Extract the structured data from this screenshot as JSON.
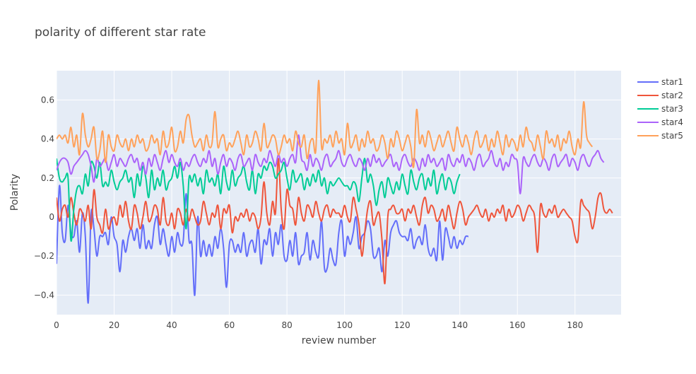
{
  "chart_data": {
    "type": "line",
    "title": "polarity of different star rate",
    "xlabel": "review number",
    "ylabel": "Polarity",
    "xlim": [
      0,
      196
    ],
    "ylim": [
      -0.5,
      0.75
    ],
    "xticks": [
      0,
      20,
      40,
      60,
      80,
      100,
      120,
      140,
      160,
      180
    ],
    "yticks": [
      -0.4,
      -0.2,
      0,
      0.2,
      0.4,
      0.6
    ],
    "ytick_labels": [
      "−0.4",
      "−0.2",
      "0",
      "0.2",
      "0.4",
      "0.6"
    ],
    "grid": true,
    "legend_position": "top-right",
    "series": [
      {
        "name": "star1",
        "color": "#636efa",
        "values": [
          -0.24,
          0.16,
          -0.08,
          -0.12,
          0.06,
          -0.08,
          -0.1,
          -0.02,
          -0.18,
          0.02,
          -0.1,
          -0.44,
          0.02,
          -0.06,
          -0.2,
          -0.1,
          -0.1,
          -0.08,
          -0.14,
          0.0,
          -0.1,
          -0.14,
          -0.28,
          -0.12,
          -0.18,
          -0.1,
          -0.06,
          -0.12,
          -0.06,
          -0.16,
          -0.04,
          -0.16,
          -0.12,
          -0.16,
          -0.04,
          0.0,
          -0.14,
          -0.06,
          -0.14,
          -0.2,
          -0.1,
          -0.18,
          -0.08,
          -0.14,
          -0.12,
          0.12,
          -0.12,
          -0.14,
          -0.4,
          0.0,
          -0.2,
          -0.12,
          -0.2,
          -0.14,
          -0.2,
          -0.1,
          -0.16,
          -0.06,
          -0.16,
          -0.36,
          -0.14,
          -0.12,
          -0.18,
          -0.14,
          -0.18,
          -0.08,
          -0.2,
          -0.14,
          -0.12,
          -0.18,
          -0.06,
          -0.24,
          -0.12,
          -0.14,
          -0.06,
          -0.2,
          -0.08,
          -0.14,
          -0.04,
          -0.2,
          -0.22,
          -0.12,
          -0.2,
          -0.08,
          -0.24,
          -0.2,
          -0.18,
          -0.08,
          -0.22,
          -0.12,
          -0.18,
          -0.2,
          -0.02,
          -0.26,
          -0.26,
          -0.16,
          -0.22,
          -0.24,
          -0.08,
          -0.02,
          -0.2,
          -0.1,
          -0.14,
          -0.08,
          0.0,
          -0.16,
          -0.1,
          -0.08,
          -0.02,
          -0.06,
          -0.2,
          -0.2,
          -0.16,
          -0.28,
          -0.12,
          -0.2,
          -0.08,
          -0.04,
          -0.02,
          -0.08,
          -0.1,
          -0.1,
          -0.12,
          -0.06,
          -0.16,
          -0.12,
          -0.1,
          -0.14,
          -0.04,
          -0.16,
          -0.2,
          -0.16,
          -0.22,
          -0.02,
          -0.22,
          -0.06,
          -0.1,
          -0.16,
          -0.1,
          -0.16,
          -0.12,
          -0.14,
          -0.1,
          -0.1
        ]
      },
      {
        "name": "star2",
        "color": "#ef553b",
        "values": [
          0.1,
          -0.02,
          0.04,
          0.06,
          0.0,
          0.1,
          0.02,
          -0.04,
          0.04,
          0.02,
          -0.02,
          0.06,
          -0.06,
          0.14,
          0.0,
          -0.04,
          -0.08,
          0.04,
          -0.06,
          -0.02,
          0.0,
          -0.04,
          0.06,
          0.0,
          0.08,
          -0.02,
          -0.06,
          0.06,
          0.02,
          -0.06,
          0.0,
          0.08,
          -0.02,
          0.0,
          0.06,
          0.04,
          -0.04,
          0.1,
          -0.02,
          -0.04,
          0.02,
          -0.06,
          0.04,
          0.02,
          -0.04,
          0.04,
          -0.02,
          0.04,
          0.0,
          -0.04,
          -0.02,
          0.08,
          0.02,
          -0.04,
          0.02,
          0.0,
          0.06,
          -0.06,
          0.04,
          0.02,
          0.06,
          -0.08,
          0.0,
          -0.02,
          0.02,
          0.0,
          0.04,
          -0.02,
          0.02,
          0.0,
          -0.06,
          0.0,
          0.18,
          0.02,
          -0.04,
          0.08,
          0.02,
          0.3,
          0.04,
          -0.06,
          0.14,
          0.06,
          0.04,
          -0.04,
          0.1,
          0.02,
          -0.02,
          0.06,
          0.04,
          0.0,
          0.08,
          0.02,
          -0.02,
          0.04,
          0.06,
          0.0,
          0.04,
          0.02,
          0.02,
          0.0,
          0.06,
          0.0,
          -0.02,
          0.1,
          0.04,
          -0.04,
          -0.2,
          -0.08,
          0.04,
          0.08,
          -0.04,
          0.0,
          0.02,
          -0.12,
          -0.34,
          0.0,
          0.04,
          0.06,
          0.02,
          0.02,
          0.04,
          -0.02,
          0.04,
          0.02,
          0.06,
          0.0,
          -0.04,
          0.06,
          0.1,
          0.02,
          0.06,
          0.04,
          -0.02,
          0.0,
          0.04,
          -0.02,
          0.06,
          0.0,
          -0.06,
          0.02,
          0.08,
          0.04,
          -0.04,
          0.0,
          0.02,
          0.04,
          0.06,
          0.02,
          0.0,
          0.04,
          -0.02,
          0.02,
          0.0,
          0.04,
          0.02,
          0.06,
          -0.02,
          0.04,
          0.0,
          0.02,
          0.06,
          0.04,
          -0.02,
          0.02,
          0.06,
          0.04,
          0.0,
          -0.18,
          0.06,
          0.02,
          0.0,
          0.04,
          0.02,
          0.06,
          0.0,
          0.02,
          0.04,
          0.02,
          0.0,
          -0.02,
          -0.1,
          -0.12,
          0.08,
          0.06,
          0.04,
          0.02,
          -0.06,
          0.0,
          0.1,
          0.12,
          0.04,
          0.02,
          0.04,
          0.02
        ]
      },
      {
        "name": "star3",
        "color": "#00cc96",
        "values": [
          0.3,
          0.2,
          0.18,
          0.2,
          0.2,
          -0.12,
          0.04,
          0.14,
          0.16,
          0.12,
          0.22,
          0.16,
          0.28,
          0.26,
          0.2,
          0.28,
          0.16,
          0.18,
          0.16,
          0.24,
          0.18,
          0.14,
          0.18,
          0.2,
          0.24,
          0.18,
          0.2,
          0.1,
          0.22,
          0.16,
          0.26,
          0.2,
          0.1,
          0.24,
          0.14,
          0.2,
          0.16,
          0.24,
          0.14,
          0.18,
          0.2,
          0.26,
          0.2,
          0.28,
          0.16,
          -0.06,
          0.2,
          0.18,
          0.22,
          0.16,
          0.2,
          0.12,
          0.24,
          0.18,
          0.2,
          0.16,
          0.22,
          0.12,
          0.26,
          0.18,
          0.14,
          0.24,
          0.16,
          0.2,
          0.22,
          0.26,
          0.18,
          0.14,
          0.24,
          0.12,
          0.22,
          0.2,
          0.26,
          0.24,
          0.28,
          0.26,
          0.2,
          0.22,
          0.24,
          0.28,
          0.2,
          0.14,
          0.24,
          0.18,
          0.2,
          0.22,
          0.14,
          0.2,
          0.16,
          0.22,
          0.18,
          0.24,
          0.16,
          0.2,
          0.12,
          0.18,
          0.16,
          0.18,
          0.2,
          0.18,
          0.16,
          0.16,
          0.14,
          0.18,
          0.16,
          0.08,
          0.2,
          0.3,
          0.18,
          0.22,
          0.16,
          0.06,
          0.14,
          0.18,
          0.1,
          0.2,
          0.16,
          0.12,
          0.18,
          0.14,
          0.22,
          0.16,
          0.12,
          0.24,
          0.18,
          0.14,
          0.2,
          0.22,
          0.14,
          0.2,
          0.16,
          0.24,
          0.12,
          0.18,
          0.22,
          0.14,
          0.2,
          0.18,
          0.12,
          0.18,
          0.22
        ]
      },
      {
        "name": "star4",
        "color": "#ab63fa",
        "values": [
          0.24,
          0.28,
          0.3,
          0.3,
          0.28,
          0.22,
          0.26,
          0.28,
          0.3,
          0.32,
          0.34,
          0.32,
          0.26,
          0.18,
          0.3,
          0.26,
          0.28,
          0.3,
          0.24,
          0.28,
          0.32,
          0.26,
          0.3,
          0.28,
          0.26,
          0.3,
          0.32,
          0.28,
          0.3,
          0.24,
          0.28,
          0.22,
          0.3,
          0.26,
          0.32,
          0.28,
          0.24,
          0.3,
          0.34,
          0.28,
          0.32,
          0.28,
          0.26,
          0.3,
          0.24,
          0.28,
          0.26,
          0.3,
          0.32,
          0.28,
          0.26,
          0.3,
          0.28,
          0.34,
          0.26,
          0.3,
          0.22,
          0.28,
          0.32,
          0.26,
          0.3,
          0.28,
          0.24,
          0.3,
          0.32,
          0.26,
          0.28,
          0.3,
          0.24,
          0.32,
          0.28,
          0.26,
          0.3,
          0.28,
          0.34,
          0.3,
          0.26,
          0.32,
          0.28,
          0.3,
          0.26,
          0.3,
          0.32,
          0.28,
          0.42,
          0.3,
          0.28,
          0.24,
          0.32,
          0.26,
          0.3,
          0.28,
          0.24,
          0.3,
          0.32,
          0.26,
          0.28,
          0.3,
          0.34,
          0.28,
          0.26,
          0.3,
          0.32,
          0.28,
          0.26,
          0.3,
          0.28,
          0.24,
          0.3,
          0.26,
          0.32,
          0.28,
          0.3,
          0.26,
          0.28,
          0.3,
          0.32,
          0.26,
          0.28,
          0.24,
          0.3,
          0.32,
          0.28,
          0.26,
          0.3,
          0.28,
          0.24,
          0.3,
          0.26,
          0.32,
          0.28,
          0.3,
          0.26,
          0.28,
          0.3,
          0.24,
          0.32,
          0.28,
          0.26,
          0.3,
          0.28,
          0.32,
          0.26,
          0.3,
          0.28,
          0.24,
          0.3,
          0.32,
          0.26,
          0.28,
          0.3,
          0.34,
          0.28,
          0.26,
          0.3,
          0.24,
          0.28,
          0.26,
          0.32,
          0.3,
          0.28,
          0.12,
          0.3,
          0.28,
          0.26,
          0.3,
          0.32,
          0.28,
          0.26,
          0.3,
          0.28,
          0.24,
          0.3,
          0.32,
          0.26,
          0.28,
          0.3,
          0.32,
          0.26,
          0.3,
          0.28,
          0.24,
          0.3,
          0.32,
          0.28,
          0.26,
          0.3,
          0.32,
          0.34,
          0.3,
          0.28
        ]
      },
      {
        "name": "star5",
        "color": "#ffa15a",
        "values": [
          0.4,
          0.42,
          0.4,
          0.42,
          0.38,
          0.46,
          0.36,
          0.42,
          0.32,
          0.53,
          0.42,
          0.36,
          0.4,
          0.46,
          0.3,
          0.34,
          0.44,
          0.28,
          0.42,
          0.36,
          0.34,
          0.42,
          0.38,
          0.36,
          0.4,
          0.34,
          0.4,
          0.36,
          0.42,
          0.38,
          0.4,
          0.34,
          0.36,
          0.42,
          0.38,
          0.4,
          0.32,
          0.44,
          0.36,
          0.38,
          0.46,
          0.34,
          0.36,
          0.44,
          0.38,
          0.5,
          0.52,
          0.42,
          0.36,
          0.38,
          0.4,
          0.34,
          0.42,
          0.36,
          0.38,
          0.54,
          0.36,
          0.4,
          0.42,
          0.34,
          0.38,
          0.36,
          0.4,
          0.44,
          0.38,
          0.32,
          0.42,
          0.36,
          0.38,
          0.44,
          0.4,
          0.34,
          0.48,
          0.36,
          0.38,
          0.42,
          0.4,
          0.32,
          0.36,
          0.42,
          0.38,
          0.4,
          0.34,
          0.44,
          0.38,
          0.36,
          0.42,
          0.3,
          0.38,
          0.4,
          0.34,
          0.7,
          0.36,
          0.4,
          0.38,
          0.42,
          0.36,
          0.44,
          0.38,
          0.4,
          0.32,
          0.48,
          0.36,
          0.38,
          0.42,
          0.34,
          0.4,
          0.36,
          0.44,
          0.38,
          0.4,
          0.34,
          0.36,
          0.42,
          0.38,
          0.3,
          0.4,
          0.36,
          0.44,
          0.4,
          0.34,
          0.38,
          0.42,
          0.36,
          0.26,
          0.55,
          0.38,
          0.42,
          0.36,
          0.44,
          0.4,
          0.34,
          0.38,
          0.42,
          0.36,
          0.4,
          0.44,
          0.38,
          0.34,
          0.46,
          0.4,
          0.36,
          0.42,
          0.38,
          0.32,
          0.4,
          0.44,
          0.36,
          0.38,
          0.42,
          0.34,
          0.4,
          0.36,
          0.44,
          0.38,
          0.32,
          0.42,
          0.36,
          0.4,
          0.38,
          0.34,
          0.42,
          0.36,
          0.46,
          0.4,
          0.38,
          0.34,
          0.42,
          0.36,
          0.3,
          0.44,
          0.38,
          0.4,
          0.36,
          0.42,
          0.34,
          0.4,
          0.38,
          0.44,
          0.36,
          0.32,
          0.4,
          0.36,
          0.59,
          0.42,
          0.38,
          0.36
        ]
      }
    ]
  }
}
